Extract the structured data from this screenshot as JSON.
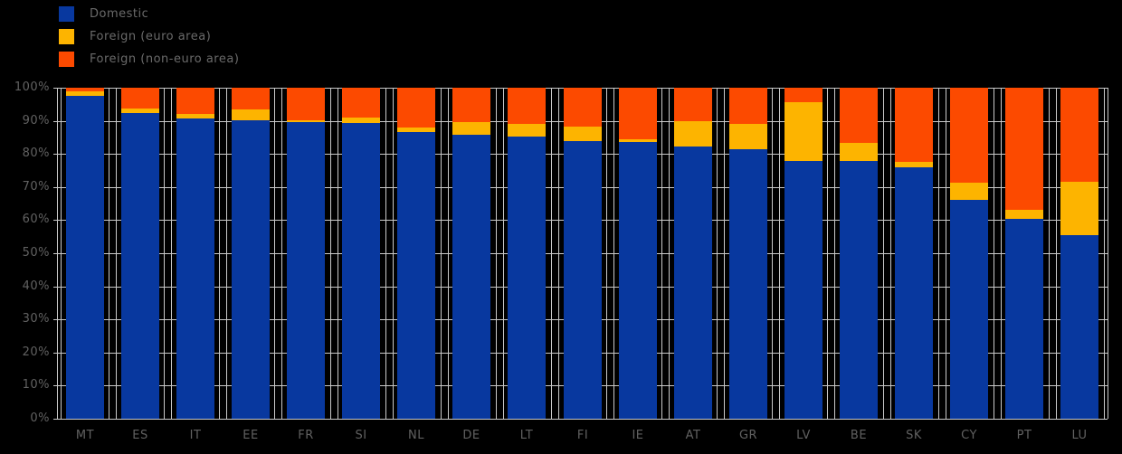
{
  "legend": {
    "items": [
      {
        "label": "Domestic",
        "color": "#08389f",
        "icon": "blue-swatch"
      },
      {
        "label": "Foreign (euro area)",
        "color": "#fdb400",
        "icon": "yellow-swatch"
      },
      {
        "label": "Foreign (non-euro area)",
        "color": "#fc4a00",
        "icon": "orange-swatch"
      }
    ]
  },
  "chart_data": {
    "type": "bar",
    "stacked": true,
    "unit": "%",
    "title": "",
    "xlabel": "",
    "ylabel": "",
    "ylim": [
      0,
      100
    ],
    "yticks": [
      "0%",
      "10%",
      "20%",
      "30%",
      "40%",
      "50%",
      "60%",
      "70%",
      "80%",
      "90%",
      "100%"
    ],
    "grid": true,
    "legend_position": "top-left",
    "categories": [
      "MT",
      "ES",
      "IT",
      "EE",
      "FR",
      "SI",
      "NL",
      "DE",
      "LT",
      "FI",
      "IE",
      "AT",
      "GR",
      "LV",
      "BE",
      "SK",
      "CY",
      "PT",
      "LU"
    ],
    "series": [
      {
        "name": "Domestic",
        "color": "#08389f",
        "values": [
          97.5,
          92.4,
          90.8,
          90.2,
          89.5,
          89.3,
          86.5,
          85.8,
          85.3,
          83.8,
          83.5,
          82.2,
          81.3,
          78.0,
          77.9,
          76.0,
          66.0,
          60.5,
          55.5
        ]
      },
      {
        "name": "Foreign (euro area)",
        "color": "#fdb400",
        "values": [
          1.3,
          1.4,
          1.4,
          3.2,
          0.8,
          1.7,
          1.5,
          3.9,
          3.9,
          4.5,
          1.0,
          7.8,
          7.7,
          17.6,
          5.4,
          1.5,
          5.4,
          2.5,
          16.1
        ]
      },
      {
        "name": "Foreign (non-euro area)",
        "color": "#fc4a00",
        "values": [
          1.2,
          6.2,
          7.8,
          6.6,
          9.7,
          9.0,
          12.0,
          10.3,
          10.8,
          11.7,
          15.5,
          10.0,
          11.0,
          4.4,
          16.7,
          22.5,
          28.6,
          37.0,
          28.4
        ]
      }
    ]
  },
  "colors": {
    "background": "#000000",
    "grid": "#c9c9c9",
    "text": "#616161"
  }
}
